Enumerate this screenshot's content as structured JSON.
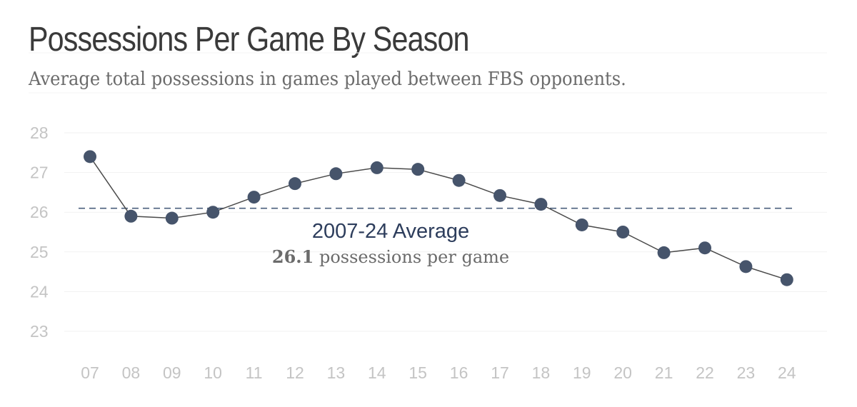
{
  "title": "Possessions Per Game By Season",
  "subtitle": "Average total possessions in games played between FBS opponents.",
  "chart_data": {
    "type": "line",
    "title": "Possessions Per Game By Season",
    "subtitle": "Average total possessions in games played between FBS opponents.",
    "xlabel": "",
    "ylabel": "",
    "x": [
      "07",
      "08",
      "09",
      "10",
      "11",
      "12",
      "13",
      "14",
      "15",
      "16",
      "17",
      "18",
      "19",
      "20",
      "21",
      "22",
      "23",
      "24"
    ],
    "values": [
      27.4,
      25.9,
      25.85,
      26.0,
      26.38,
      26.72,
      26.97,
      27.12,
      27.08,
      26.8,
      26.42,
      26.2,
      25.68,
      25.5,
      24.98,
      25.1,
      24.63,
      24.3
    ],
    "ylim": [
      23,
      28
    ],
    "yticks": [
      "28",
      "27",
      "26",
      "25",
      "24",
      "23"
    ],
    "grid": true,
    "line_color": "#4a4a4a",
    "marker_color": "#46546b",
    "average": {
      "value": 26.1,
      "line_color": "#4b5f7d",
      "label": "2007-24 Average",
      "number": "26.1",
      "unit_text": " possessions per game"
    }
  }
}
